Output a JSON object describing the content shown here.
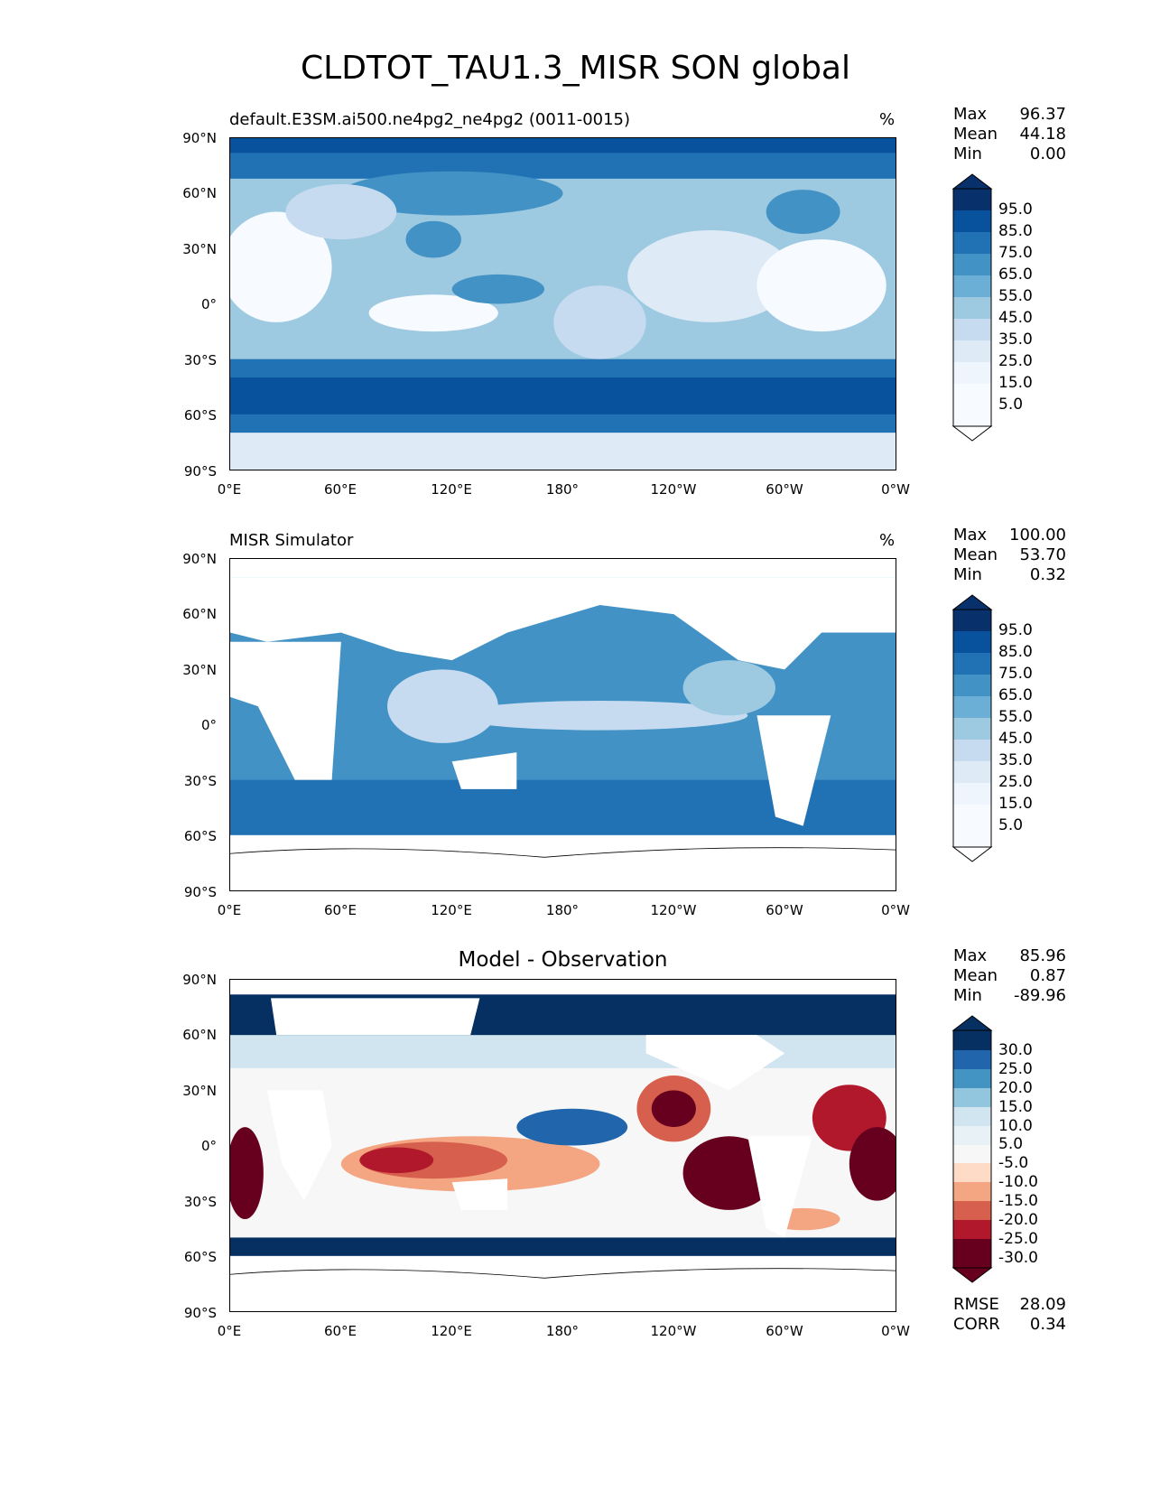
{
  "figure": {
    "title": "CLDTOT_TAU1.3_MISR SON global"
  },
  "axes": {
    "lat_ticks": [
      "90°N",
      "60°N",
      "30°N",
      "0°",
      "30°S",
      "60°S",
      "90°S"
    ],
    "lon_ticks": [
      "0°E",
      "60°E",
      "120°E",
      "180°",
      "120°W",
      "60°W",
      "0°W"
    ]
  },
  "panels": [
    {
      "subtitle": "default.E3SM.ai500.ne4pg2_ne4pg2 (0011-0015)",
      "units": "%",
      "stats": {
        "max_label": "Max",
        "max": "96.37",
        "mean_label": "Mean",
        "mean": "44.18",
        "min_label": "Min",
        "min": "0.00"
      },
      "colorbar_labels": [
        "95.0",
        "85.0",
        "75.0",
        "65.0",
        "55.0",
        "45.0",
        "35.0",
        "25.0",
        "15.0",
        "5.0"
      ]
    },
    {
      "subtitle": "MISR Simulator",
      "units": "%",
      "stats": {
        "max_label": "Max",
        "max": "100.00",
        "mean_label": "Mean",
        "mean": "53.70",
        "min_label": "Min",
        "min": "0.32"
      },
      "colorbar_labels": [
        "95.0",
        "85.0",
        "75.0",
        "65.0",
        "55.0",
        "45.0",
        "35.0",
        "25.0",
        "15.0",
        "5.0"
      ]
    },
    {
      "title": "Model - Observation",
      "units": "",
      "stats": {
        "max_label": "Max",
        "max": "85.96",
        "mean_label": "Mean",
        "mean": "0.87",
        "min_label": "Min",
        "min": "-89.96"
      },
      "colorbar_labels": [
        "30.0",
        "25.0",
        "20.0",
        "15.0",
        "10.0",
        "5.0",
        "-5.0",
        "-10.0",
        "-15.0",
        "-20.0",
        "-25.0",
        "-30.0"
      ],
      "metrics": {
        "rmse_label": "RMSE",
        "rmse": "28.09",
        "corr_label": "CORR",
        "corr": "0.34"
      }
    }
  ],
  "colors": {
    "sequential": [
      "#08306b",
      "#08519c",
      "#2171b5",
      "#4292c6",
      "#6baed6",
      "#9ecae1",
      "#c6dbef",
      "#deebf7",
      "#f7fbff"
    ],
    "diverging": [
      "#053061",
      "#2166ac",
      "#4393c3",
      "#92c5de",
      "#d1e5f0",
      "#f7f7f7",
      "#fddbc7",
      "#f4a582",
      "#d6604d",
      "#b2182b",
      "#67001f"
    ]
  }
}
